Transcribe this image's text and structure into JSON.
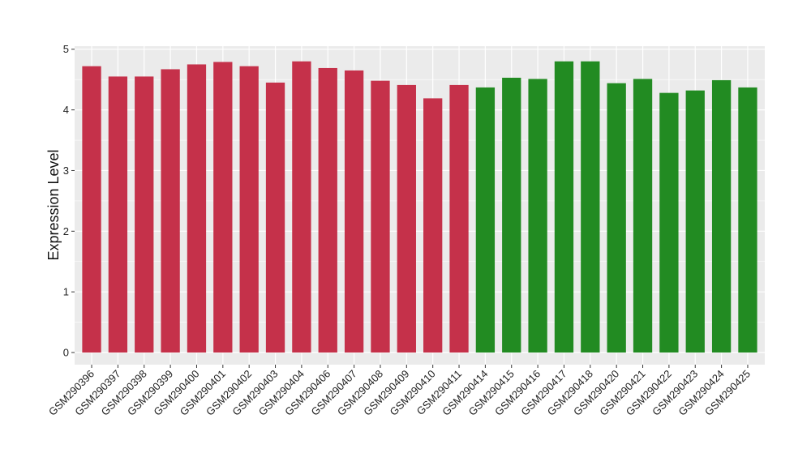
{
  "chart_data": {
    "type": "bar",
    "title": "",
    "xlabel": "",
    "ylabel": "Expression Level",
    "ylim": [
      -0.2,
      5.05
    ],
    "yticks": [
      0,
      1,
      2,
      3,
      4,
      5
    ],
    "grid": true,
    "legend": "none",
    "panel_background": "#EBEBEB",
    "gridline_color": "#FFFFFF",
    "categories": [
      "GSM290396",
      "GSM290397",
      "GSM290398",
      "GSM290399",
      "GSM290400",
      "GSM290401",
      "GSM290402",
      "GSM290403",
      "GSM290404",
      "GSM290406",
      "GSM290407",
      "GSM290408",
      "GSM290409",
      "GSM290410",
      "GSM290411",
      "GSM290414",
      "GSM290415",
      "GSM290416",
      "GSM290417",
      "GSM290418",
      "GSM290420",
      "GSM290421",
      "GSM290422",
      "GSM290423",
      "GSM290424",
      "GSM290425"
    ],
    "values": [
      4.72,
      4.55,
      4.55,
      4.67,
      4.75,
      4.79,
      4.72,
      4.45,
      4.8,
      4.69,
      4.65,
      4.48,
      4.41,
      4.19,
      4.41,
      4.37,
      4.53,
      4.51,
      4.8,
      4.8,
      4.44,
      4.51,
      4.28,
      4.32,
      4.49,
      4.37
    ],
    "groups": [
      {
        "color": "#C5314A",
        "count": 15
      },
      {
        "color": "#228B22",
        "count": 11
      }
    ]
  }
}
